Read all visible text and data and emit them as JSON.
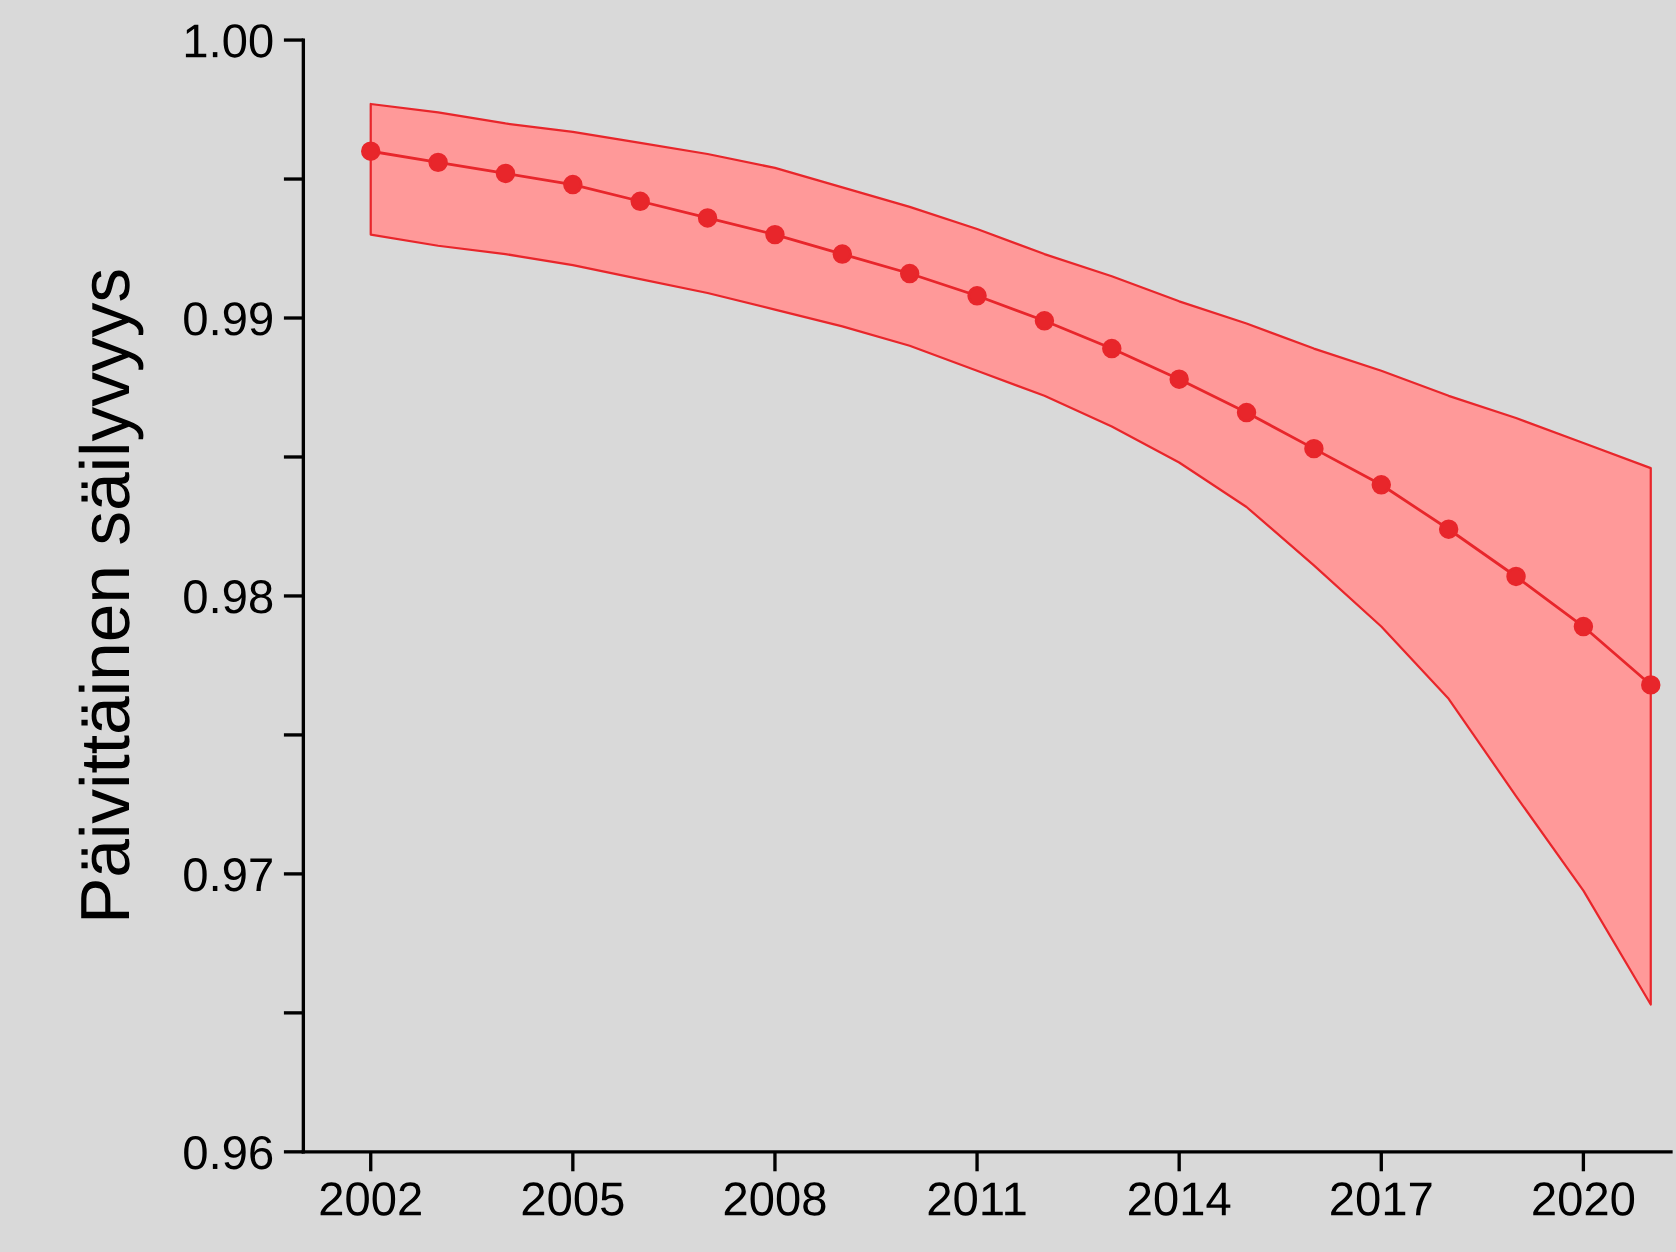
{
  "chart_data": {
    "type": "line",
    "ylabel": "Päivittäinen säilyvyys",
    "x": [
      2002,
      2003,
      2004,
      2005,
      2006,
      2007,
      2008,
      2009,
      2010,
      2011,
      2012,
      2013,
      2014,
      2015,
      2016,
      2017,
      2018,
      2019,
      2020,
      2021
    ],
    "series": [
      {
        "color": "#e8262b",
        "values": [
          0.996,
          0.9956,
          0.9952,
          0.9948,
          0.9942,
          0.9936,
          0.993,
          0.9923,
          0.9916,
          0.9908,
          0.9899,
          0.9889,
          0.9878,
          0.9866,
          0.9853,
          0.984,
          0.9824,
          0.9807,
          0.9789,
          0.9768
        ],
        "upper": [
          0.9977,
          0.9974,
          0.997,
          0.9967,
          0.9963,
          0.9959,
          0.9954,
          0.9947,
          0.994,
          0.9932,
          0.9923,
          0.9915,
          0.9906,
          0.9898,
          0.9889,
          0.9881,
          0.9872,
          0.9864,
          0.9855,
          0.9846
        ],
        "lower": [
          0.993,
          0.9926,
          0.9923,
          0.9919,
          0.9914,
          0.9909,
          0.9903,
          0.9897,
          0.989,
          0.9881,
          0.9872,
          0.9861,
          0.9848,
          0.9832,
          0.9811,
          0.9789,
          0.9763,
          0.9728,
          0.9694,
          0.9653
        ]
      }
    ],
    "marker": "circle",
    "line_style": "solid",
    "grid": false,
    "xlim": [
      2001,
      2021.3
    ],
    "xticks": [
      2002,
      2005,
      2008,
      2011,
      2014,
      2017,
      2020
    ],
    "ylim": [
      0.96,
      1.0
    ],
    "yticks": [
      {
        "value": 0.96,
        "label": "0.96"
      },
      {
        "value": 0.965,
        "label": null
      },
      {
        "value": 0.97,
        "label": "0.97"
      },
      {
        "value": 0.975,
        "label": null
      },
      {
        "value": 0.98,
        "label": "0.98"
      },
      {
        "value": 0.985,
        "label": null
      },
      {
        "value": 0.99,
        "label": "0.99"
      },
      {
        "value": 0.995,
        "label": null
      },
      {
        "value": 1.0,
        "label": "1.00"
      }
    ]
  }
}
